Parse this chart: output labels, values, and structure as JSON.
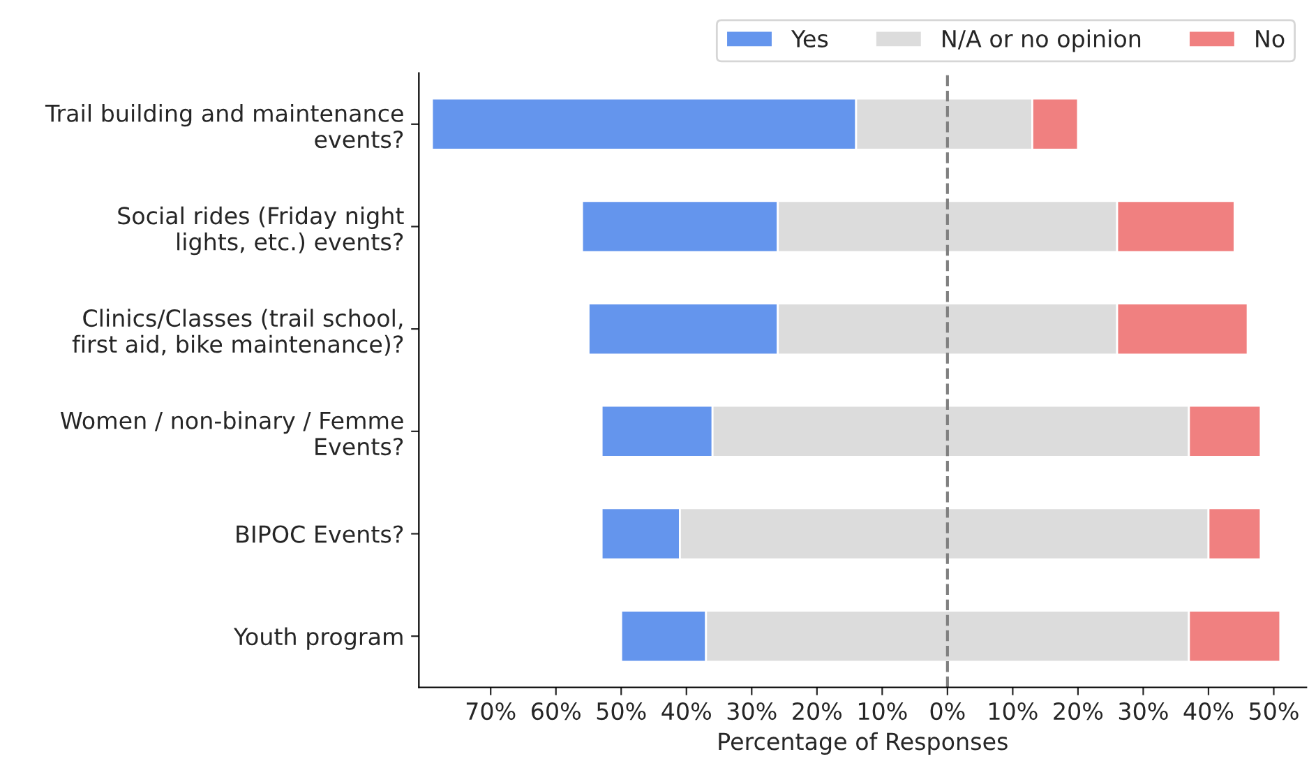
{
  "chart_data": {
    "type": "bar",
    "orientation": "horizontal",
    "categories": [
      "Trail building and maintenance\nevents?",
      "Social rides (Friday night\nlights, etc.) events?",
      "Clinics/Classes (trail school,\nfirst aid, bike maintenance)?",
      "Women / non-binary / Femme\nEvents?",
      "BIPOC Events?",
      "Youth program"
    ],
    "series": [
      {
        "name": "Yes",
        "color": "#6495ed",
        "base": [
          -79,
          -56,
          -55,
          -53,
          -53,
          -50
        ],
        "values": [
          65,
          30,
          29,
          17,
          12,
          13
        ]
      },
      {
        "name": "N/A or no opinion",
        "color": "#dcdcdc",
        "base": [
          -14,
          -26,
          -26,
          -36,
          -41,
          -37
        ],
        "values": [
          27,
          52,
          52,
          73,
          81,
          74
        ]
      },
      {
        "name": "No",
        "color": "#f08080",
        "base": [
          13,
          26,
          26,
          37,
          40,
          37
        ],
        "values": [
          7,
          18,
          20,
          11,
          8,
          14
        ]
      }
    ],
    "xlabel": "Percentage of Responses",
    "xlim": [
      -81,
      55
    ],
    "xticks": [
      {
        "value": -70,
        "label": "70%"
      },
      {
        "value": -60,
        "label": "60%"
      },
      {
        "value": -50,
        "label": "50%"
      },
      {
        "value": -40,
        "label": "40%"
      },
      {
        "value": -30,
        "label": "30%"
      },
      {
        "value": -20,
        "label": "20%"
      },
      {
        "value": -10,
        "label": "10%"
      },
      {
        "value": 0,
        "label": "0%"
      },
      {
        "value": 10,
        "label": "10%"
      },
      {
        "value": 20,
        "label": "20%"
      },
      {
        "value": 30,
        "label": "30%"
      },
      {
        "value": 40,
        "label": "40%"
      },
      {
        "value": 50,
        "label": "50%"
      }
    ],
    "ref_lines": [
      {
        "axis": "x",
        "value": 0,
        "color": "#808080",
        "line_style": "dashed"
      }
    ],
    "legend": "top right",
    "grid": false
  }
}
